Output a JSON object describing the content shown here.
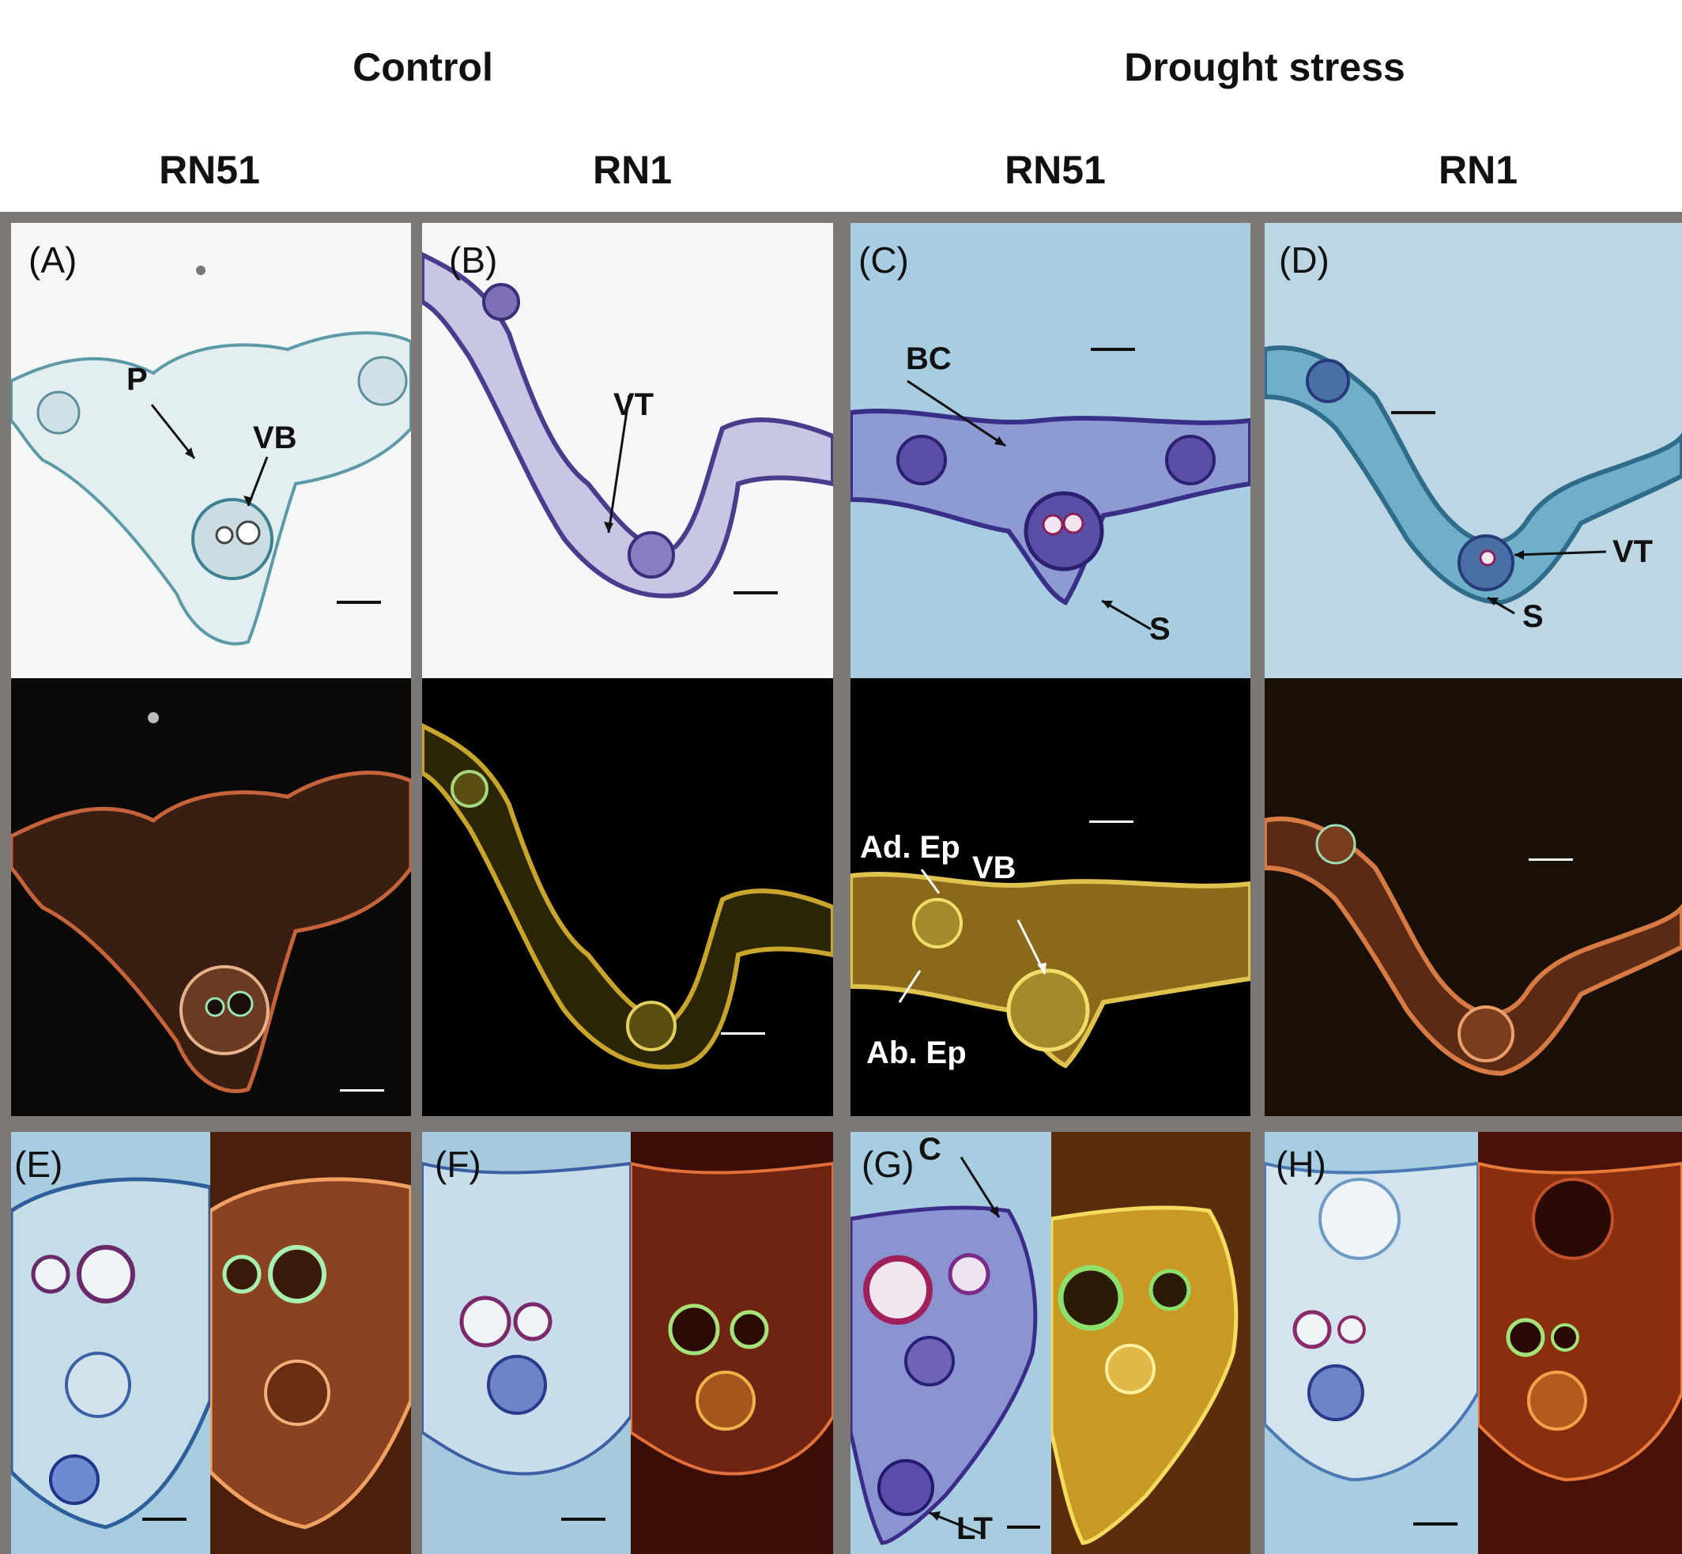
{
  "headers": {
    "control": "Control",
    "drought": "Drought stress",
    "columns": [
      "RN51",
      "RN1",
      "RN51",
      "RN1"
    ]
  },
  "panels": {
    "A": "(A)",
    "B": "(B)",
    "C": "(C)",
    "D": "(D)",
    "E": "(E)",
    "F": "(F)",
    "G": "(G)",
    "H": "(H)"
  },
  "annotations": {
    "P": "P",
    "VB": "VB",
    "VT": "VT",
    "BC": "BC",
    "S": "S",
    "AdEp": "Ad. Ep",
    "AbEp": "Ab. Ep",
    "C": "C",
    "LT": "LT"
  },
  "colors": {
    "frame": "#7c7876",
    "brightfield_bg": "#f4f6f6",
    "brightfield_blue_bg": "#a9cde0",
    "stain_purple": "#4a3c8c",
    "stain_teal": "#3d9ab6",
    "fluor_bg": "#050403",
    "fluor_orange": "#d8782e",
    "fluor_yellow": "#d9b53a"
  }
}
